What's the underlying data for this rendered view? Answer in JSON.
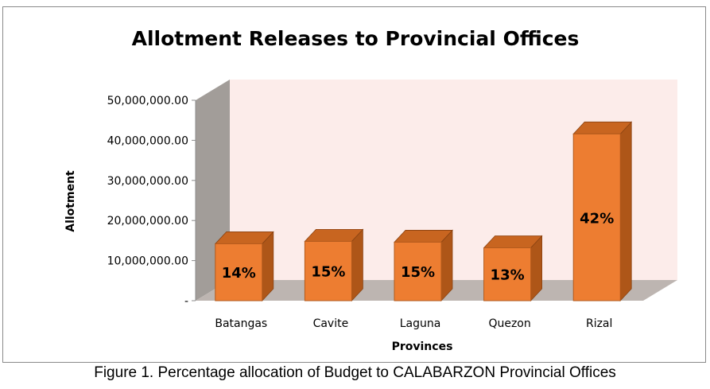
{
  "chart_data": {
    "type": "bar",
    "title": "Allotment Releases to Provincial Offices",
    "xlabel": "Provinces",
    "ylabel": "Allotment",
    "categories": [
      "Batangas",
      "Cavite",
      "Laguna",
      "Quezon",
      "Rizal"
    ],
    "values": [
      14200000,
      14800000,
      14600000,
      13200000,
      41600000
    ],
    "data_labels": [
      "14%",
      "15%",
      "15%",
      "13%",
      "42%"
    ],
    "ylim": [
      0,
      50000000
    ],
    "y_ticks": [
      {
        "value": 0,
        "label": "-"
      },
      {
        "value": 10000000,
        "label": "10,000,000.00"
      },
      {
        "value": 20000000,
        "label": "20,000,000.00"
      },
      {
        "value": 30000000,
        "label": "30,000,000.00"
      },
      {
        "value": 40000000,
        "label": "40,000,000.00"
      },
      {
        "value": 50000000,
        "label": "50,000,000.00"
      }
    ],
    "grid": false,
    "legend": "none",
    "colors": {
      "bar_front": "#ed7d31",
      "bar_side": "#ae5618",
      "bar_top": "#c86520",
      "back_wall": "#fcecea",
      "side_wall": "#a29d99",
      "floor": "#bdb5b1"
    }
  },
  "caption": "Figure 1. Percentage allocation of Budget to CALABARZON Provincial Offices"
}
